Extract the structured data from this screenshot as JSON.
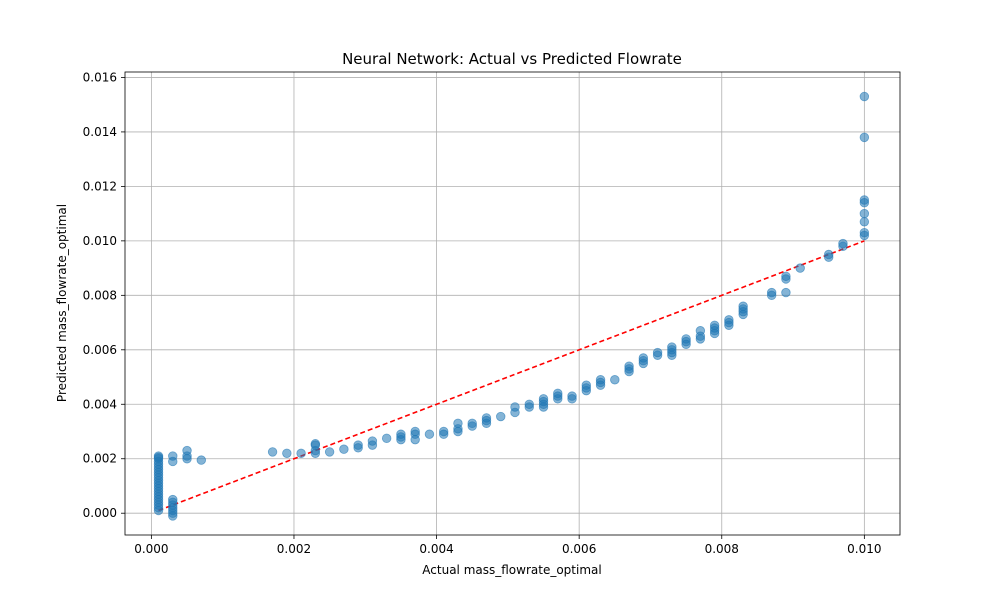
{
  "chart_data": {
    "type": "scatter",
    "title": "Neural Network: Actual vs Predicted Flowrate",
    "xlabel": "Actual mass_flowrate_optimal",
    "ylabel": "Predicted mass_flowrate_optimal",
    "xlim": [
      -0.00037,
      0.0105
    ],
    "ylim": [
      -0.0008,
      0.0162
    ],
    "xticks": [
      0.0,
      0.002,
      0.004,
      0.006,
      0.008,
      0.01
    ],
    "xtick_labels": [
      "0.000",
      "0.002",
      "0.004",
      "0.006",
      "0.008",
      "0.010"
    ],
    "yticks": [
      0.0,
      0.002,
      0.004,
      0.006,
      0.008,
      0.01,
      0.012,
      0.014,
      0.016
    ],
    "ytick_labels": [
      "0.000",
      "0.002",
      "0.004",
      "0.006",
      "0.008",
      "0.010",
      "0.012",
      "0.014",
      "0.016"
    ],
    "grid": true,
    "colors": {
      "points": "#1f77b4",
      "reference_line": "#ff0000"
    },
    "reference_line": {
      "x": [
        0.0001,
        0.01
      ],
      "y": [
        0.0001,
        0.01
      ],
      "style": "dashed"
    },
    "points": [
      [
        0.0001,
        0.0021
      ],
      [
        0.0001,
        0.00205
      ],
      [
        0.0001,
        0.002
      ],
      [
        0.0001,
        0.0019
      ],
      [
        0.0001,
        0.0018
      ],
      [
        0.0001,
        0.0017
      ],
      [
        0.0001,
        0.0016
      ],
      [
        0.0001,
        0.0015
      ],
      [
        0.0001,
        0.0014
      ],
      [
        0.0001,
        0.0013
      ],
      [
        0.0001,
        0.0012
      ],
      [
        0.0001,
        0.0011
      ],
      [
        0.0001,
        0.001
      ],
      [
        0.0001,
        0.0009
      ],
      [
        0.0001,
        0.0008
      ],
      [
        0.0001,
        0.0007
      ],
      [
        0.0001,
        0.0006
      ],
      [
        0.0001,
        0.0005
      ],
      [
        0.0001,
        0.0004
      ],
      [
        0.0001,
        0.0003
      ],
      [
        0.0001,
        0.0002
      ],
      [
        0.0001,
        0.0001
      ],
      [
        0.0003,
        0.0021
      ],
      [
        0.0003,
        0.0019
      ],
      [
        0.0003,
        0.0005
      ],
      [
        0.0003,
        0.0004
      ],
      [
        0.0003,
        0.0003
      ],
      [
        0.0003,
        0.0002
      ],
      [
        0.0003,
        0.0001
      ],
      [
        0.0003,
        0.0
      ],
      [
        0.0003,
        -0.0001
      ],
      [
        0.0005,
        0.0023
      ],
      [
        0.0005,
        0.0021
      ],
      [
        0.0005,
        0.002
      ],
      [
        0.0007,
        0.00195
      ],
      [
        0.0017,
        0.00225
      ],
      [
        0.0019,
        0.0022
      ],
      [
        0.0021,
        0.0022
      ],
      [
        0.0023,
        0.00255
      ],
      [
        0.0023,
        0.0025
      ],
      [
        0.0023,
        0.0023
      ],
      [
        0.0023,
        0.0022
      ],
      [
        0.0025,
        0.00225
      ],
      [
        0.0027,
        0.00235
      ],
      [
        0.0029,
        0.0025
      ],
      [
        0.0029,
        0.0024
      ],
      [
        0.0031,
        0.00265
      ],
      [
        0.0031,
        0.0025
      ],
      [
        0.0033,
        0.00275
      ],
      [
        0.0035,
        0.0029
      ],
      [
        0.0035,
        0.0028
      ],
      [
        0.0035,
        0.0027
      ],
      [
        0.0037,
        0.003
      ],
      [
        0.0037,
        0.0029
      ],
      [
        0.0037,
        0.0027
      ],
      [
        0.0039,
        0.0029
      ],
      [
        0.0041,
        0.003
      ],
      [
        0.0041,
        0.0029
      ],
      [
        0.0043,
        0.0033
      ],
      [
        0.0043,
        0.0031
      ],
      [
        0.0043,
        0.003
      ],
      [
        0.0045,
        0.0033
      ],
      [
        0.0045,
        0.0032
      ],
      [
        0.0047,
        0.0035
      ],
      [
        0.0047,
        0.0034
      ],
      [
        0.0047,
        0.0033
      ],
      [
        0.0049,
        0.00355
      ],
      [
        0.0051,
        0.0039
      ],
      [
        0.0051,
        0.0037
      ],
      [
        0.0053,
        0.004
      ],
      [
        0.0053,
        0.0039
      ],
      [
        0.0055,
        0.0042
      ],
      [
        0.0055,
        0.0041
      ],
      [
        0.0055,
        0.004
      ],
      [
        0.0055,
        0.0039
      ],
      [
        0.0057,
        0.0044
      ],
      [
        0.0057,
        0.0043
      ],
      [
        0.0057,
        0.0042
      ],
      [
        0.0059,
        0.0043
      ],
      [
        0.0059,
        0.0042
      ],
      [
        0.0061,
        0.0047
      ],
      [
        0.0061,
        0.0046
      ],
      [
        0.0061,
        0.0045
      ],
      [
        0.0063,
        0.0049
      ],
      [
        0.0063,
        0.0048
      ],
      [
        0.0063,
        0.0047
      ],
      [
        0.0065,
        0.0049
      ],
      [
        0.0067,
        0.0054
      ],
      [
        0.0067,
        0.0053
      ],
      [
        0.0067,
        0.0052
      ],
      [
        0.0069,
        0.0057
      ],
      [
        0.0069,
        0.0056
      ],
      [
        0.0069,
        0.0055
      ],
      [
        0.0071,
        0.0059
      ],
      [
        0.0071,
        0.0058
      ],
      [
        0.0073,
        0.0061
      ],
      [
        0.0073,
        0.006
      ],
      [
        0.0073,
        0.0059
      ],
      [
        0.0073,
        0.0058
      ],
      [
        0.0075,
        0.0064
      ],
      [
        0.0075,
        0.0063
      ],
      [
        0.0075,
        0.0062
      ],
      [
        0.0077,
        0.0067
      ],
      [
        0.0077,
        0.0065
      ],
      [
        0.0077,
        0.0064
      ],
      [
        0.0079,
        0.0069
      ],
      [
        0.0079,
        0.0068
      ],
      [
        0.0079,
        0.0067
      ],
      [
        0.0079,
        0.0066
      ],
      [
        0.0081,
        0.0071
      ],
      [
        0.0081,
        0.007
      ],
      [
        0.0081,
        0.0069
      ],
      [
        0.0083,
        0.0076
      ],
      [
        0.0083,
        0.0075
      ],
      [
        0.0083,
        0.0074
      ],
      [
        0.0083,
        0.0073
      ],
      [
        0.0087,
        0.0081
      ],
      [
        0.0087,
        0.008
      ],
      [
        0.0089,
        0.0087
      ],
      [
        0.0089,
        0.0086
      ],
      [
        0.0089,
        0.0081
      ],
      [
        0.0091,
        0.009
      ],
      [
        0.0095,
        0.0095
      ],
      [
        0.0095,
        0.0094
      ],
      [
        0.0097,
        0.0099
      ],
      [
        0.0097,
        0.0098
      ],
      [
        0.01,
        0.0153
      ],
      [
        0.01,
        0.0138
      ],
      [
        0.01,
        0.0115
      ],
      [
        0.01,
        0.0114
      ],
      [
        0.01,
        0.011
      ],
      [
        0.01,
        0.0107
      ],
      [
        0.01,
        0.0103
      ],
      [
        0.01,
        0.0102
      ]
    ]
  }
}
